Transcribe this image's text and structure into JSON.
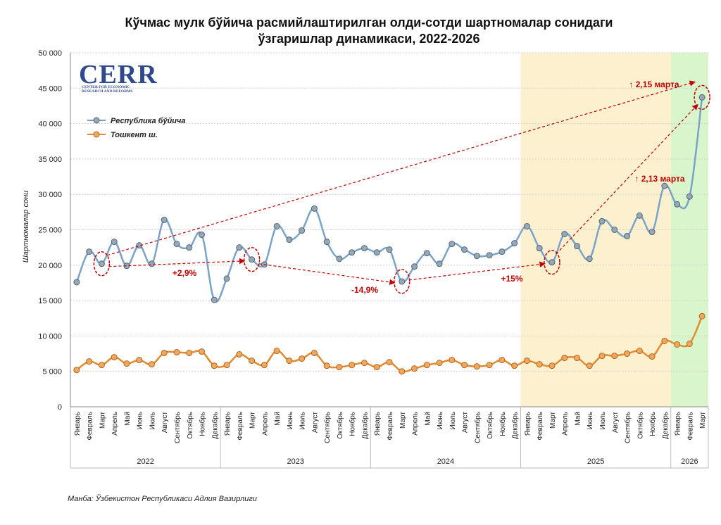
{
  "title_line1": "Кўчмас мулк бўйича расмийлаштирилган олди-сотди шартномалар сонидаги",
  "title_line2": "ўзгаришлар динамикаси, 2022-2026",
  "source": "Манба: Ўзбекистон Республикаси Адлия Вазирлиги",
  "logo": {
    "main": "CERR",
    "sub1": "CENTER FOR ECONOMIC",
    "sub2": "RESEARCH AND REFORMS"
  },
  "colors": {
    "republic": "#7aa3c8",
    "republic_marker": "#9aa6b0",
    "tashkent": "#e38a2f",
    "tashkent_marker": "#f0a860",
    "annotation": "#c00000",
    "band_2025": "#fcf0cf",
    "band_2026": "#d8f5cc"
  },
  "chart_data": {
    "type": "line",
    "ylabel": "Шартномалар сони",
    "ylim": [
      0,
      50000
    ],
    "yticks": [
      "0",
      "5 000",
      "10 000",
      "15 000",
      "20 000",
      "25 000",
      "30 000",
      "35 000",
      "40 000",
      "45 000",
      "50 000"
    ],
    "legend_position": "top-left",
    "categories": [
      "Январь",
      "Февраль",
      "Март",
      "Апрель",
      "Май",
      "Июнь",
      "Июль",
      "Август",
      "Сентябрь",
      "Октябрь",
      "Ноябрь",
      "Декабрь",
      "Январь",
      "Февраль",
      "Март",
      "Апрель",
      "Май",
      "Июнь",
      "Июль",
      "Август",
      "Сентябрь",
      "Октябрь",
      "Ноябрь",
      "Декабрь",
      "Январь",
      "Февраль",
      "Март",
      "Апрель",
      "Май",
      "Июнь",
      "Июль",
      "Август",
      "Сентябрь",
      "Октябрь",
      "Ноябрь",
      "Декабрь",
      "Январь",
      "Февраль",
      "Март",
      "Апрель",
      "Май",
      "Июнь",
      "Июль",
      "Август",
      "Сентябрь",
      "Октябрь",
      "Ноябрь",
      "Декабрь",
      "Январь",
      "Февраль",
      "Март"
    ],
    "years": [
      {
        "label": "2022",
        "months": 12
      },
      {
        "label": "2023",
        "months": 12
      },
      {
        "label": "2024",
        "months": 12
      },
      {
        "label": "2025",
        "months": 12
      },
      {
        "label": "2026",
        "months": 3
      }
    ],
    "series": [
      {
        "name": "Республика бўйича",
        "values": [
          17600,
          21900,
          20200,
          23300,
          19900,
          22800,
          20200,
          26400,
          23000,
          22500,
          24300,
          15100,
          18100,
          22500,
          20800,
          20100,
          25500,
          23600,
          24900,
          28000,
          23300,
          20900,
          21800,
          22400,
          21800,
          22200,
          17700,
          19800,
          21700,
          20200,
          23000,
          22200,
          21300,
          21400,
          21900,
          23100,
          25500,
          22400,
          20400,
          24400,
          22700,
          20900,
          26200,
          25000,
          24100,
          27000,
          24700,
          31200,
          28600,
          29700,
          43700
        ]
      },
      {
        "name": "Тошкент ш.",
        "values": [
          5200,
          6400,
          5900,
          7000,
          6100,
          6600,
          6000,
          7600,
          7700,
          7600,
          7800,
          5800,
          5900,
          7400,
          6500,
          5900,
          7900,
          6500,
          6800,
          7600,
          5800,
          5600,
          5900,
          6200,
          5600,
          6300,
          5000,
          5400,
          5900,
          6200,
          6600,
          5900,
          5700,
          5900,
          6600,
          5800,
          6500,
          6000,
          5800,
          6900,
          6900,
          5800,
          7200,
          7200,
          7500,
          7900,
          7100,
          9300,
          8800,
          8900,
          12800
        ]
      }
    ],
    "annotations": [
      {
        "text": "+2,9%",
        "from_index": 2,
        "to_index": 14
      },
      {
        "text": "-14,9%",
        "from_index": 14,
        "to_index": 26
      },
      {
        "text": "+15%",
        "from_index": 26,
        "to_index": 38
      },
      {
        "text": "↑ 2,13 марта",
        "from_index": 38,
        "to_index": 50
      },
      {
        "text": "↑ 2,15 марта",
        "from_index": 2,
        "to_index": 50
      }
    ]
  }
}
